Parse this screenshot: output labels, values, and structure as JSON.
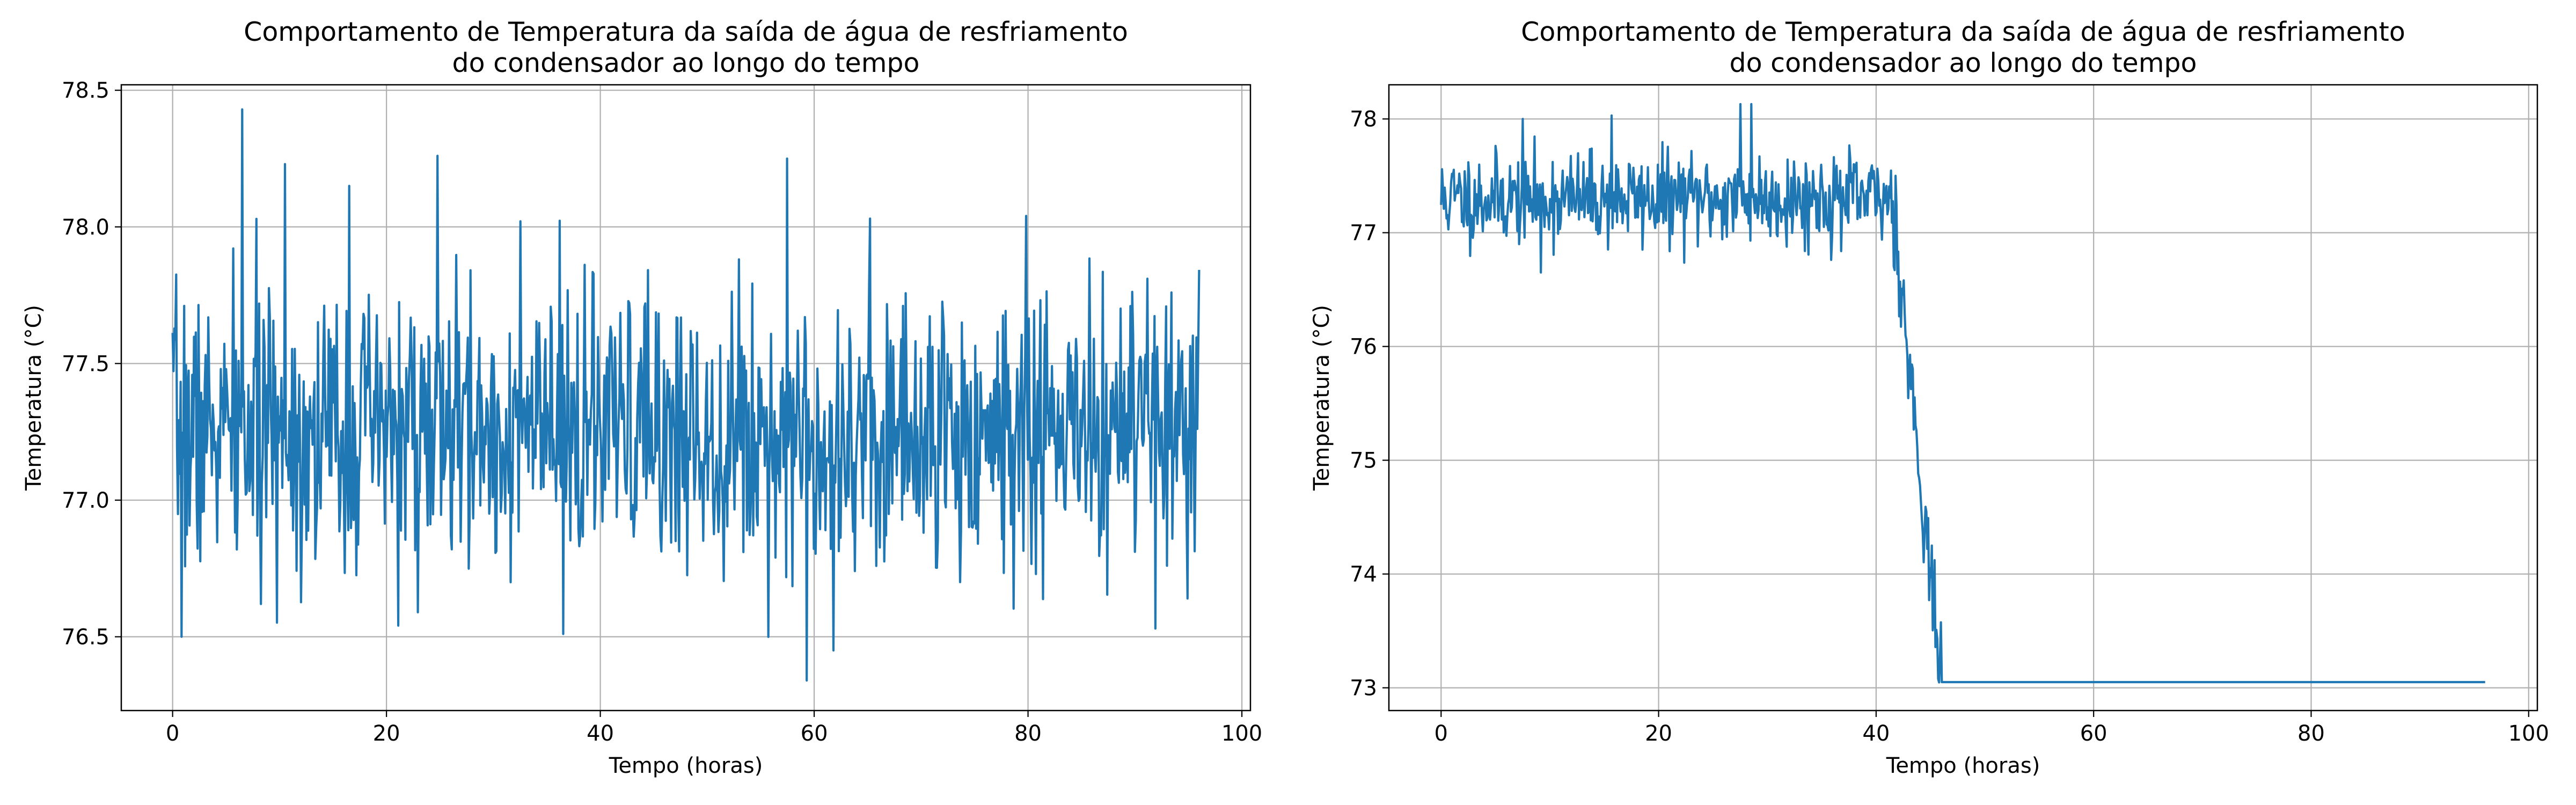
{
  "chart_data": [
    {
      "type": "line",
      "title_line1": "Comportamento de Temperatura da saída de água de resfriamento",
      "title_line2": "do condensador ao longo do tempo",
      "xlabel": "Tempo (horas)",
      "ylabel": "Temperatura (°C)",
      "xlim": [
        -4.8,
        100.8
      ],
      "ylim": [
        76.23,
        78.52
      ],
      "xticks": [
        0,
        20,
        40,
        60,
        80,
        100
      ],
      "xtick_labels": [
        "0",
        "20",
        "40",
        "60",
        "80",
        "100"
      ],
      "yticks": [
        76.5,
        77.0,
        77.5,
        78.0,
        78.5
      ],
      "ytick_labels": [
        "76.5",
        "77.0",
        "77.5",
        "78.0",
        "78.5"
      ],
      "grid": true,
      "line_color": "#1f77b4",
      "series": [
        {
          "x_start": 0,
          "x_end": 96,
          "points": 1152,
          "mean": 77.25,
          "noise_std": 0.25,
          "seed": 7,
          "peaks": [
            [
              0.8,
              76.5
            ],
            [
              6.5,
              78.43
            ],
            [
              10.5,
              78.23
            ],
            [
              16.5,
              78.15
            ],
            [
              24.8,
              78.26
            ],
            [
              36.5,
              76.51
            ],
            [
              57.5,
              78.25
            ],
            [
              59.3,
              76.34
            ],
            [
              61.8,
              76.45
            ],
            [
              79.8,
              78.04
            ],
            [
              91.9,
              76.53
            ],
            [
              94.9,
              76.64
            ]
          ]
        }
      ]
    },
    {
      "type": "line",
      "title_line1": "Comportamento de Temperatura da saída de água de resfriamento",
      "title_line2": "do condensador ao longo do tempo",
      "xlabel": "Tempo (horas)",
      "ylabel": "Temperatura (°C)",
      "xlim": [
        -4.8,
        100.8
      ],
      "ylim": [
        72.8,
        78.3
      ],
      "xticks": [
        0,
        20,
        40,
        60,
        80,
        100
      ],
      "xtick_labels": [
        "0",
        "20",
        "40",
        "60",
        "80",
        "100"
      ],
      "yticks": [
        73,
        74,
        75,
        76,
        77,
        78
      ],
      "ytick_labels": [
        "73",
        "74",
        "75",
        "76",
        "77",
        "78"
      ],
      "grid": true,
      "line_color": "#1f77b4",
      "series": [
        {
          "x_start": 0,
          "x_end": 96,
          "points": 1152,
          "seed": 11,
          "segments": [
            {
              "x_from": 0,
              "x_to": 41.5,
              "mean": 77.3,
              "noise_std": 0.2
            },
            {
              "x_from": 41.5,
              "x_to": 46.0,
              "y_from": 77.3,
              "y_to": 73.05,
              "noise_std": 0.22
            },
            {
              "x_from": 46.0,
              "x_to": 96,
              "mean": 73.05,
              "noise_std": 0
            }
          ],
          "peaks": [
            [
              7.5,
              78.0
            ],
            [
              15.7,
              78.03
            ],
            [
              27.5,
              78.13
            ],
            [
              28.5,
              78.13
            ],
            [
              9.2,
              76.65
            ],
            [
              41.8,
              77.5
            ]
          ]
        }
      ]
    }
  ]
}
